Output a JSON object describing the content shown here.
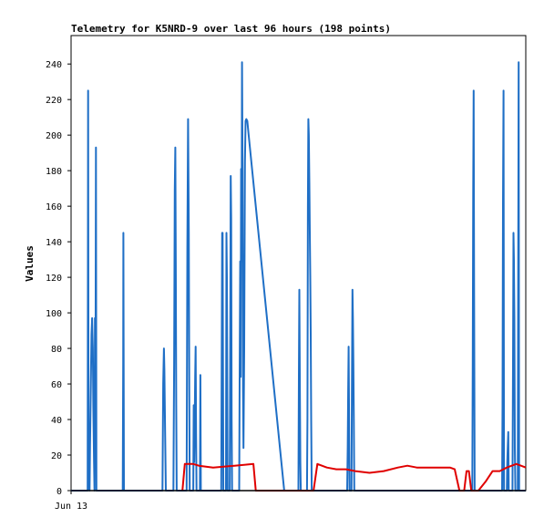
{
  "chart_data": {
    "type": "line",
    "title": "Telemetry for K5NRD-9 over last 96 hours (198 points)",
    "xlabel": "",
    "ylabel": "Values",
    "x_ticks": [
      "Jun 13"
    ],
    "y_ticks": [
      0,
      20,
      40,
      60,
      80,
      100,
      120,
      140,
      160,
      180,
      200,
      220,
      240
    ],
    "ylim": [
      0,
      256
    ],
    "xlim": [
      0,
      96
    ],
    "grid": false,
    "colors": {
      "series_blue": "#1f6fc6",
      "series_red": "#e00000",
      "baseline_black": "#000000"
    },
    "series": [
      {
        "color": "#1f6fc6",
        "points": [
          [
            0,
            0
          ],
          [
            3.5,
            0
          ],
          [
            3.6,
            225
          ],
          [
            3.7,
            8
          ],
          [
            3.9,
            0
          ],
          [
            4.0,
            25
          ],
          [
            4.15,
            56
          ],
          [
            4.3,
            88
          ],
          [
            4.45,
            97
          ],
          [
            4.6,
            80
          ],
          [
            4.7,
            48
          ],
          [
            4.85,
            16
          ],
          [
            4.95,
            0
          ],
          [
            5.05,
            97
          ],
          [
            5.15,
            55
          ],
          [
            5.25,
            193
          ],
          [
            5.35,
            0
          ],
          [
            10.9,
            0
          ],
          [
            11.0,
            72
          ],
          [
            11.05,
            145
          ],
          [
            11.15,
            0
          ],
          [
            19.3,
            0
          ],
          [
            19.45,
            60
          ],
          [
            19.6,
            80
          ],
          [
            19.7,
            68
          ],
          [
            19.85,
            33
          ],
          [
            20.0,
            0
          ],
          [
            21.6,
            0
          ],
          [
            21.75,
            72
          ],
          [
            21.9,
            169
          ],
          [
            22.0,
            193
          ],
          [
            22.1,
            129
          ],
          [
            22.2,
            48
          ],
          [
            22.3,
            0
          ],
          [
            24.4,
            0
          ],
          [
            24.55,
            136
          ],
          [
            24.7,
            209
          ],
          [
            24.85,
            145
          ],
          [
            24.95,
            56
          ],
          [
            25.05,
            0
          ],
          [
            25.8,
            0
          ],
          [
            25.9,
            48
          ],
          [
            26.0,
            16
          ],
          [
            26.1,
            40
          ],
          [
            26.2,
            64
          ],
          [
            26.3,
            81
          ],
          [
            26.4,
            32
          ],
          [
            26.5,
            0
          ],
          [
            27.2,
            0
          ],
          [
            27.3,
            65
          ],
          [
            27.4,
            0
          ],
          [
            31.7,
            0
          ],
          [
            31.8,
            72
          ],
          [
            31.9,
            145
          ],
          [
            32.0,
            145
          ],
          [
            32.15,
            0
          ],
          [
            32.7,
            0
          ],
          [
            32.8,
            145
          ],
          [
            32.9,
            120
          ],
          [
            33.05,
            0
          ],
          [
            33.5,
            0
          ],
          [
            33.6,
            89
          ],
          [
            33.7,
            177
          ],
          [
            33.8,
            153
          ],
          [
            33.9,
            40
          ],
          [
            34.0,
            0
          ],
          [
            35.5,
            0
          ],
          [
            35.6,
            65
          ],
          [
            35.7,
            129
          ],
          [
            35.8,
            64
          ],
          [
            35.9,
            181
          ],
          [
            36.0,
            129
          ],
          [
            36.1,
            241
          ],
          [
            36.2,
            180
          ],
          [
            36.3,
            56
          ],
          [
            36.4,
            24
          ],
          [
            36.55,
            80
          ],
          [
            36.7,
            185
          ],
          [
            36.85,
            208
          ],
          [
            37.0,
            209
          ],
          [
            37.2,
            208
          ],
          [
            37.5,
            200
          ],
          [
            45.0,
            0
          ],
          [
            48.0,
            0
          ],
          [
            48.1,
            64
          ],
          [
            48.2,
            113
          ],
          [
            48.3,
            56
          ],
          [
            48.4,
            16
          ],
          [
            48.5,
            0
          ],
          [
            49.8,
            0
          ],
          [
            49.9,
            40
          ],
          [
            50.0,
            160
          ],
          [
            50.1,
            209
          ],
          [
            50.2,
            200
          ],
          [
            50.3,
            173
          ],
          [
            50.4,
            145
          ],
          [
            50.5,
            120
          ],
          [
            50.6,
            88
          ],
          [
            50.7,
            40
          ],
          [
            50.8,
            0
          ],
          [
            58.3,
            0
          ],
          [
            58.4,
            24
          ],
          [
            58.5,
            56
          ],
          [
            58.6,
            81
          ],
          [
            58.7,
            40
          ],
          [
            58.8,
            0
          ],
          [
            59.2,
            0
          ],
          [
            59.3,
            56
          ],
          [
            59.4,
            113
          ],
          [
            59.5,
            97
          ],
          [
            59.6,
            72
          ],
          [
            59.7,
            40
          ],
          [
            59.8,
            0
          ],
          [
            84.7,
            0
          ],
          [
            84.8,
            72
          ],
          [
            84.9,
            169
          ],
          [
            85.0,
            225
          ],
          [
            85.1,
            112
          ],
          [
            85.2,
            0
          ],
          [
            91.0,
            0
          ],
          [
            91.1,
            48
          ],
          [
            91.2,
            161
          ],
          [
            91.3,
            225
          ],
          [
            91.4,
            0
          ],
          [
            92.0,
            0
          ],
          [
            92.1,
            16
          ],
          [
            92.2,
            24
          ],
          [
            92.3,
            33
          ],
          [
            92.4,
            0
          ],
          [
            93.2,
            0
          ],
          [
            93.3,
            72
          ],
          [
            93.4,
            145
          ],
          [
            93.5,
            129
          ],
          [
            93.6,
            97
          ],
          [
            93.7,
            24
          ],
          [
            93.8,
            0
          ],
          [
            94.3,
            0
          ],
          [
            94.4,
            121
          ],
          [
            94.5,
            241
          ],
          [
            94.6,
            0
          ],
          [
            96,
            0
          ]
        ]
      },
      {
        "color": "#e00000",
        "points": [
          [
            23.5,
            0
          ],
          [
            24.0,
            15
          ],
          [
            25.8,
            15
          ],
          [
            27.0,
            14
          ],
          [
            30.0,
            13
          ],
          [
            34.5,
            14
          ],
          [
            38.5,
            15
          ],
          [
            39.0,
            0
          ],
          [
            51.2,
            0
          ],
          [
            52.0,
            15
          ],
          [
            54.0,
            13
          ],
          [
            56.0,
            12
          ],
          [
            58.0,
            12
          ],
          [
            60.0,
            11
          ],
          [
            63.0,
            10
          ],
          [
            66.0,
            11
          ],
          [
            69.0,
            13
          ],
          [
            71.0,
            14
          ],
          [
            73.0,
            13
          ],
          [
            78.0,
            13
          ],
          [
            80.0,
            13
          ],
          [
            81.0,
            12
          ],
          [
            82.0,
            0
          ],
          [
            83.0,
            0
          ],
          [
            83.5,
            11
          ],
          [
            84.0,
            11
          ],
          [
            84.5,
            0
          ],
          [
            86.0,
            0
          ],
          [
            87.5,
            5
          ],
          [
            89.0,
            11
          ],
          [
            90.5,
            11
          ],
          [
            92.0,
            13
          ],
          [
            94.0,
            15
          ],
          [
            95.0,
            14
          ],
          [
            96.0,
            13
          ]
        ]
      },
      {
        "color": "#000000",
        "points": [
          [
            0,
            0
          ],
          [
            96,
            0
          ]
        ]
      }
    ]
  }
}
